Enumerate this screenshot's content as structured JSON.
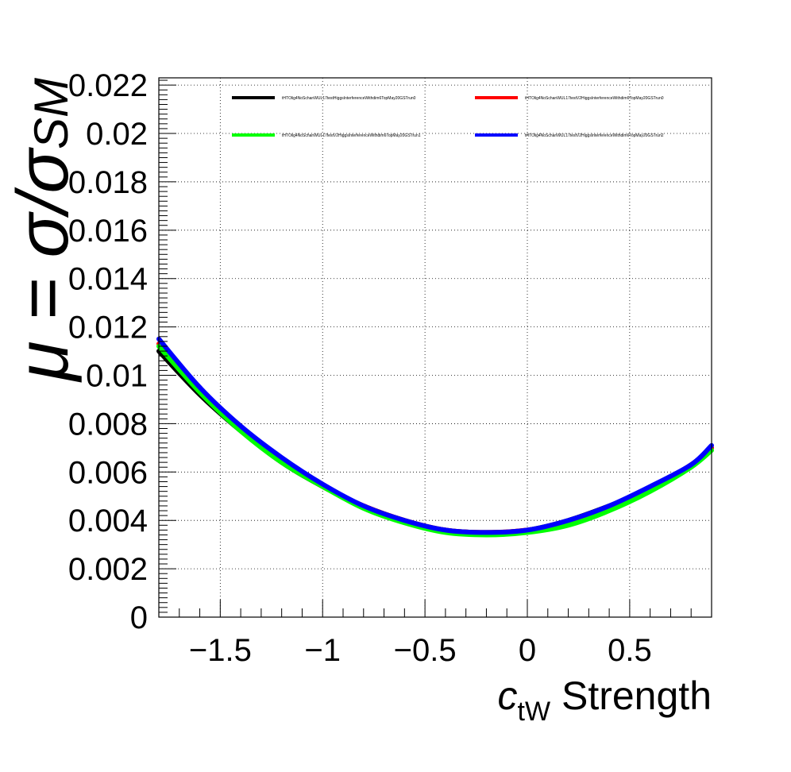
{
  "chart_data": {
    "type": "line",
    "title": "",
    "xlabel_main": "c",
    "xlabel_sub": "tW",
    "xlabel_suffix": " Strength",
    "ylabel": "μ = σ/σ",
    "ylabel_sub": "SM",
    "xlim": [
      -1.8,
      0.9
    ],
    "ylim": [
      0,
      0.0223
    ],
    "x_ticks": [
      -1.5,
      -1,
      -0.5,
      0,
      0.5
    ],
    "x_tick_labels": [
      "−1.5",
      "−1",
      "−0.5",
      "0",
      "0.5"
    ],
    "y_ticks": [
      0,
      0.002,
      0.004,
      0.006,
      0.008,
      0.01,
      0.012,
      0.014,
      0.016,
      0.018,
      0.02,
      0.022
    ],
    "y_tick_labels": [
      "0",
      "0.002",
      "0.004",
      "0.006",
      "0.008",
      "0.01",
      "0.012",
      "0.014",
      "0.016",
      "0.018",
      "0.02",
      "0.022"
    ],
    "grid": true,
    "legend_position": "top",
    "series": [
      {
        "name": "tHTOlig4NoSchanWUL17testHiggsInterferenceWithdim6TopMay20GSTrun0",
        "color": "#000000",
        "x": [
          -1.8,
          -1.6,
          -1.4,
          -1.2,
          -1.0,
          -0.8,
          -0.6,
          -0.4,
          -0.2,
          0.0,
          0.2,
          0.4,
          0.6,
          0.8,
          0.9
        ],
        "y": [
          0.011,
          0.0092,
          0.0077,
          0.0064,
          0.0054,
          0.0046,
          0.004,
          0.0036,
          0.0035,
          0.0036,
          0.004,
          0.0046,
          0.0053,
          0.0063,
          0.007
        ]
      },
      {
        "name": "tHTOlig4NoSchanWUL17testV2HiggsInterferenceWithdim6TopMay20GSTrun0",
        "color": "#ff0000",
        "x": [
          -1.8,
          -1.6,
          -1.4,
          -1.2,
          -1.0,
          -0.8,
          -0.6,
          -0.4,
          -0.2,
          0.0,
          0.2,
          0.4,
          0.6,
          0.8,
          0.9
        ],
        "y": [
          0.0113,
          0.0094,
          0.0078,
          0.0065,
          0.0054,
          0.0046,
          0.004,
          0.0036,
          0.0035,
          0.0036,
          0.0039,
          0.0045,
          0.0053,
          0.0063,
          0.007
        ]
      },
      {
        "name": "tHTOlig4NoSchanWUL17testV2HiggsInterferenceWithdim6TopMay20GSTrun1",
        "color": "#00ff00",
        "x": [
          -1.8,
          -1.6,
          -1.4,
          -1.2,
          -1.0,
          -0.8,
          -0.6,
          -0.4,
          -0.2,
          0.0,
          0.2,
          0.4,
          0.6,
          0.8,
          0.9
        ],
        "y": [
          0.0112,
          0.0093,
          0.0077,
          0.0064,
          0.0054,
          0.0045,
          0.0039,
          0.0035,
          0.0034,
          0.0035,
          0.0038,
          0.0044,
          0.0052,
          0.0062,
          0.0069
        ]
      },
      {
        "name": "tHTOlig4NoSchanWUL17testV2HiggsInterferenceWithdim6TopMay20GSTrun2",
        "color": "#0000ff",
        "x": [
          -1.8,
          -1.6,
          -1.4,
          -1.2,
          -1.0,
          -0.8,
          -0.6,
          -0.4,
          -0.2,
          0.0,
          0.2,
          0.4,
          0.6,
          0.8,
          0.9
        ],
        "y": [
          0.0115,
          0.0095,
          0.0079,
          0.0066,
          0.0055,
          0.0046,
          0.004,
          0.0036,
          0.0035,
          0.0036,
          0.004,
          0.0046,
          0.0054,
          0.0063,
          0.0071
        ]
      }
    ]
  }
}
